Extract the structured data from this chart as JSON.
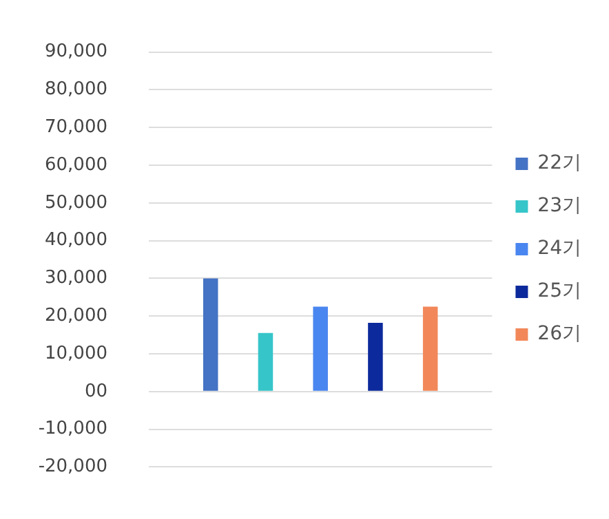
{
  "chart_data": {
    "type": "bar",
    "categories": [
      null
    ],
    "series": [
      {
        "name": "22기",
        "color": "#4472c4",
        "values": [
          30000
        ]
      },
      {
        "name": "23기",
        "color": "#36c5c9",
        "values": [
          15500
        ]
      },
      {
        "name": "24기",
        "color": "#4a86f0",
        "values": [
          22500
        ]
      },
      {
        "name": "25기",
        "color": "#0d2a9c",
        "values": [
          18200
        ]
      },
      {
        "name": "26기",
        "color": "#f2885a",
        "values": [
          22500
        ]
      }
    ],
    "ylim": [
      -20000,
      90000
    ],
    "yticks": [
      {
        "value": -20000,
        "label": "-20,000"
      },
      {
        "value": -10000,
        "label": "-10,000"
      },
      {
        "value": 0,
        "label": "00"
      },
      {
        "value": 10000,
        "label": "10,000"
      },
      {
        "value": 20000,
        "label": "20,000"
      },
      {
        "value": 30000,
        "label": "30,000"
      },
      {
        "value": 40000,
        "label": "40,000"
      },
      {
        "value": 50000,
        "label": "50,000"
      },
      {
        "value": 60000,
        "label": "60,000"
      },
      {
        "value": 70000,
        "label": "70,000"
      },
      {
        "value": 80000,
        "label": "80,000"
      },
      {
        "value": 90000,
        "label": "90,000"
      }
    ],
    "grid": "y",
    "legend": "right"
  }
}
